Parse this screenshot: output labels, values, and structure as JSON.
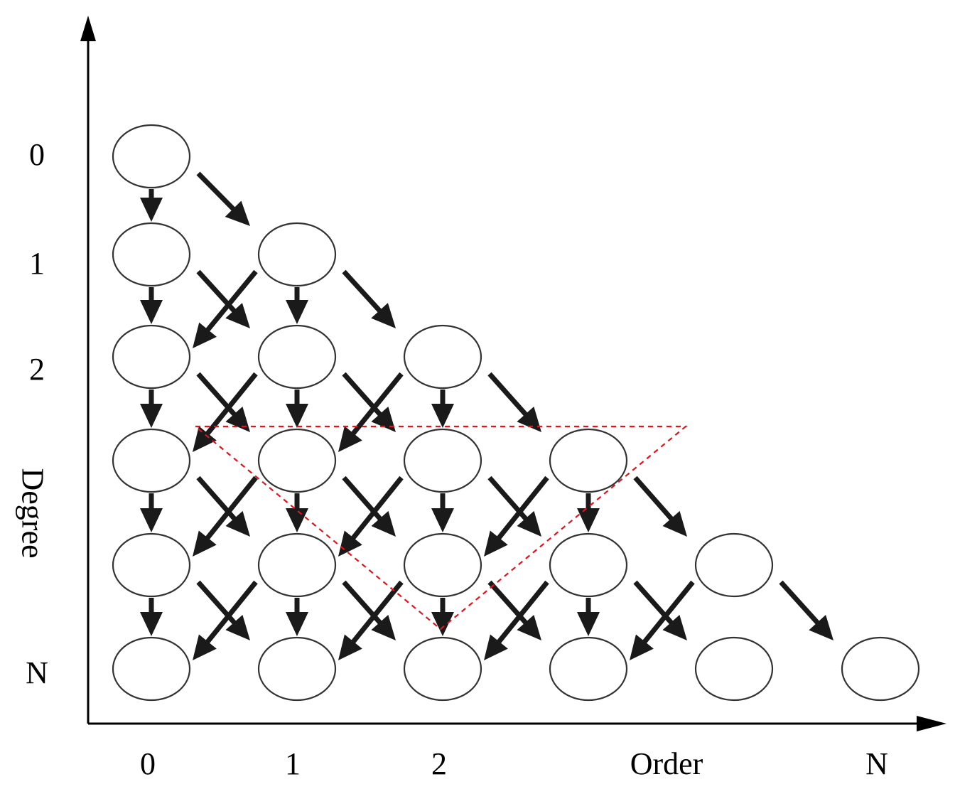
{
  "diagram": {
    "y_axis": {
      "title": "Degree",
      "tick_labels": [
        "0",
        "1",
        "2",
        "N"
      ]
    },
    "x_axis": {
      "title": "Order",
      "tick_labels": [
        "0",
        "1",
        "2",
        "N"
      ]
    },
    "node_rows": [
      {
        "nodes": 1
      },
      {
        "nodes": 2
      },
      {
        "nodes": 3
      },
      {
        "nodes": 4
      },
      {
        "nodes": 5
      },
      {
        "nodes": 6
      }
    ],
    "highlight": {
      "shape": "dashed inverted triangle",
      "color": "#e0141e"
    },
    "colors": {
      "node_stroke": "#333333",
      "arrow": "#1a1a1a",
      "axis": "#000000"
    }
  }
}
